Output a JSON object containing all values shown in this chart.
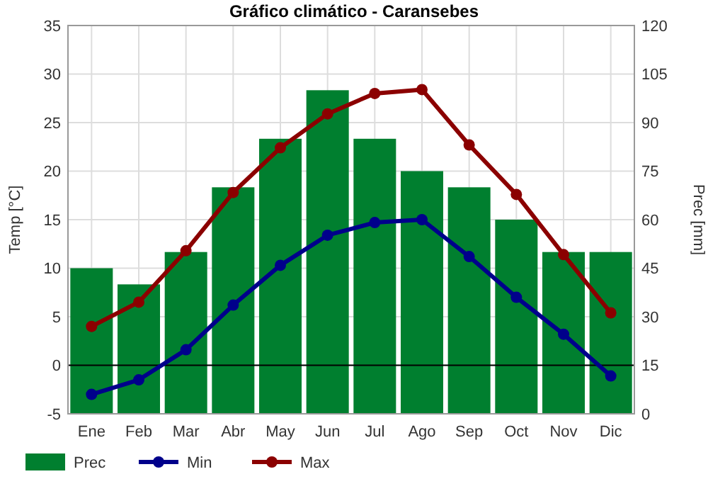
{
  "chart_data": {
    "type": "bar",
    "title": "Gráfico climático - Caransebes",
    "ylabel": "Temp [°C]",
    "y2label": "Prec [mm]",
    "categories": [
      "Ene",
      "Feb",
      "Mar",
      "Abr",
      "May",
      "Jun",
      "Jul",
      "Ago",
      "Sep",
      "Oct",
      "Nov",
      "Dic"
    ],
    "series": [
      {
        "name": "Prec",
        "axis": "y2",
        "color": "#007f2f",
        "values": [
          45,
          40,
          50,
          70,
          85,
          100,
          85,
          75,
          70,
          60,
          50,
          50
        ]
      },
      {
        "name": "Min",
        "type": "line",
        "color": "#00008b",
        "values": [
          -3,
          -1.5,
          1.6,
          6.2,
          10.3,
          13.4,
          14.7,
          15,
          11.2,
          7,
          3.2,
          -1.1
        ]
      },
      {
        "name": "Max",
        "type": "line",
        "color": "#8b0000",
        "values": [
          4,
          6.5,
          11.8,
          17.8,
          22.4,
          25.9,
          28,
          28.4,
          22.7,
          17.6,
          11.4,
          5.4
        ]
      }
    ],
    "ylim": [
      -5,
      35
    ],
    "yticks": [
      -5,
      0,
      5,
      10,
      15,
      20,
      25,
      30,
      35
    ],
    "y2lim": [
      0,
      120
    ],
    "y2ticks": [
      0,
      15,
      30,
      45,
      60,
      75,
      90,
      105,
      120
    ],
    "ref_lines": [
      {
        "axis": "y",
        "value": 0,
        "color": "#000000"
      }
    ],
    "grid": true,
    "legend": "bottom",
    "marker": "circle",
    "line_style": "solid"
  }
}
